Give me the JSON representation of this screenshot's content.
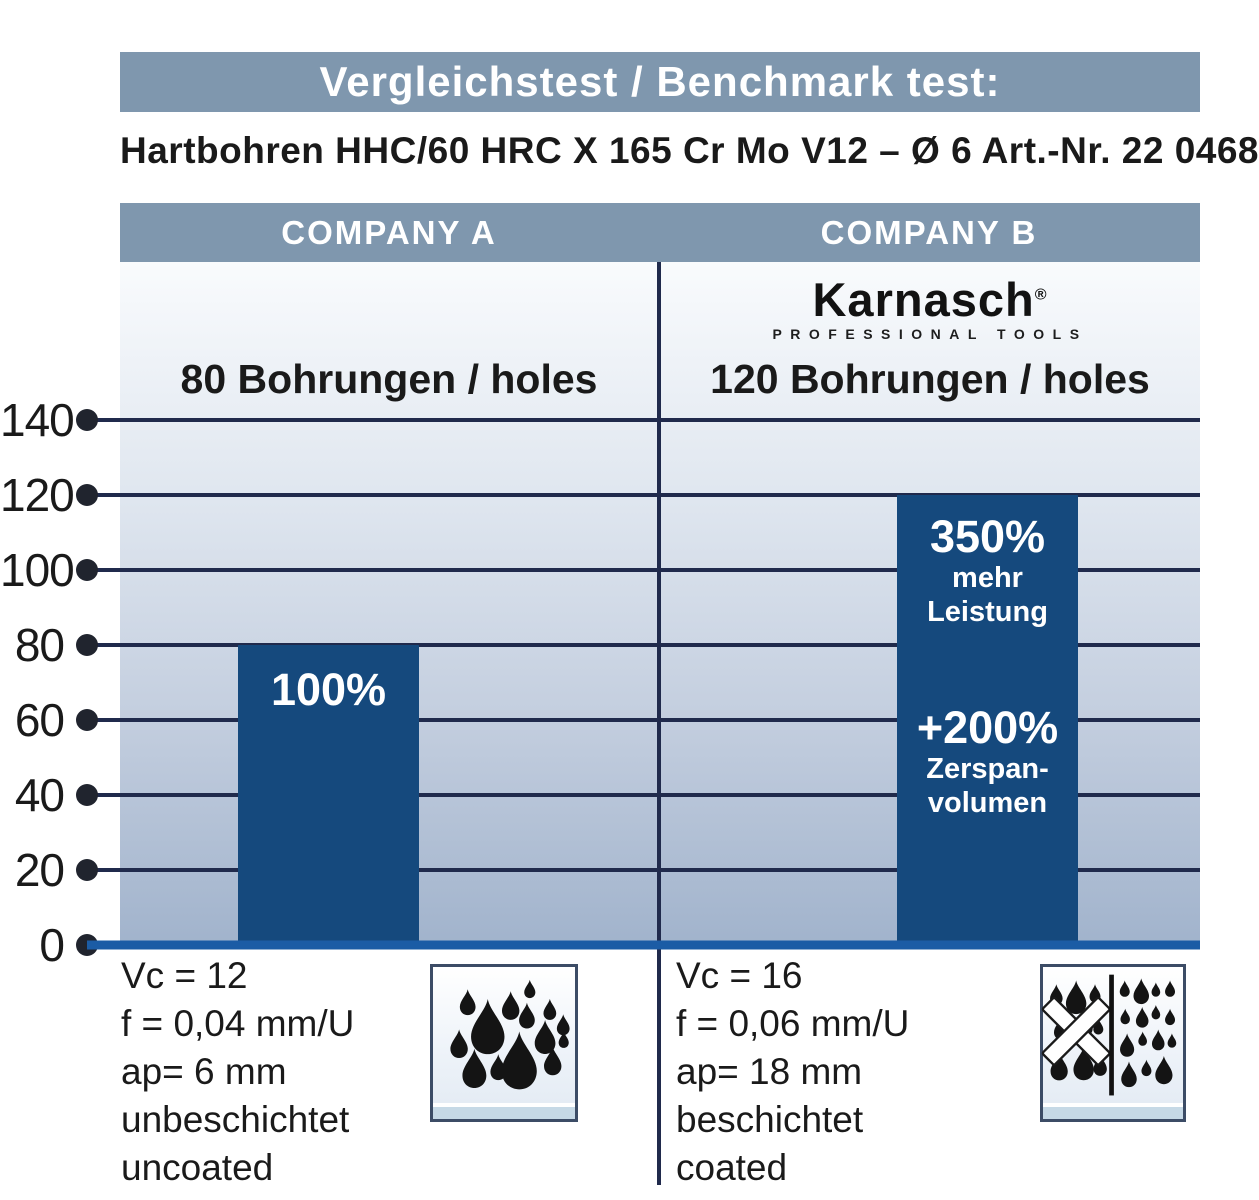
{
  "header": {
    "title": "Vergleichstest / Benchmark test:",
    "subtitle": "Hartbohren HHC/60 HRC X 165 Cr Mo V12 – Ø 6 Art.-Nr. 22 0468"
  },
  "columns": {
    "a": {
      "name": "COMPANY A",
      "holes_label": "80 Bohrungen / holes"
    },
    "b": {
      "name": "COMPANY B",
      "holes_label": "120 Bohrungen / holes"
    }
  },
  "logo": {
    "brand": "Karnasch",
    "registered_mark": "®",
    "tagline": "PROFESSIONAL TOOLS"
  },
  "chart_data": {
    "type": "bar",
    "title": "Vergleichstest / Benchmark test:",
    "subtitle": "Hartbohren HHC/60 HRC X 165 Cr Mo V12 – Ø 6 Art.-Nr. 22 0468",
    "categories": [
      "COMPANY A",
      "COMPANY B"
    ],
    "values": [
      80,
      120
    ],
    "unit": "Bohrungen / holes",
    "ylim": [
      0,
      140
    ],
    "ytick_step": 20,
    "yticks": [
      "140",
      "120",
      "100",
      "80",
      "60",
      "40",
      "20",
      "0"
    ],
    "grid": "horizontal",
    "legend": "none",
    "bar_annotations": {
      "a": {
        "percent": "100%"
      },
      "b": {
        "performance_percent": "350%",
        "performance_line1": "mehr",
        "performance_line2": "Leistung",
        "volume_percent": "+200%",
        "volume_line1": "Zerspan-",
        "volume_line2": "volumen"
      }
    }
  },
  "footer": {
    "a": {
      "lines": [
        "Vc = 12",
        "f = 0,04 mm/U",
        "ap= 6 mm",
        "unbeschichtet",
        "uncoated"
      ],
      "icon": "coolant-drops-icon"
    },
    "b": {
      "lines": [
        "Vc = 16",
        "f = 0,06 mm/U",
        "ap= 18 mm",
        "beschichtet",
        "coated"
      ],
      "icon": "dry-or-coolant-drops-icon"
    }
  },
  "colors": {
    "header_bar": "#7f97ae",
    "bar_fill": "#15497d",
    "gridline": "#202a4c",
    "baseline": "#1b5ca5",
    "chart_bg_top": "#f9fbfd",
    "chart_bg_bottom": "#a1b3cc",
    "text_dark": "#1a1a1a",
    "text_light": "#ffffff"
  }
}
